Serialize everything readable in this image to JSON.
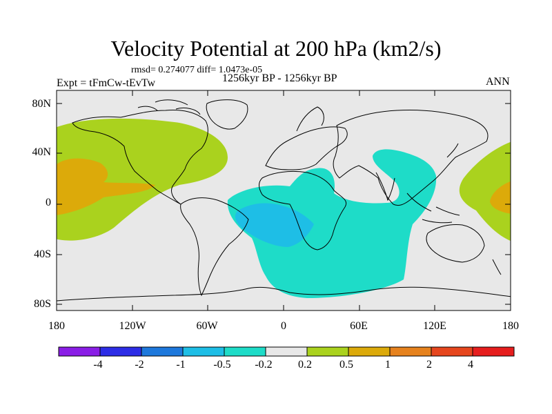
{
  "title": "Velocity Potential at 200 hPa (km2/s)",
  "stats": "rmsd= 0.274077 diff= 1.0473e-05",
  "experiment": "Expt = tFmCw-tEvTw",
  "period": "1256kyr BP - 1256kyr BP",
  "season": "ANN",
  "map": {
    "lat_labels": [
      "80N",
      "40N",
      "0",
      "40S",
      "80S"
    ],
    "lon_labels": [
      "180",
      "120W",
      "60W",
      "0",
      "60E",
      "120E",
      "180"
    ],
    "background_color": "#e8e8e8"
  },
  "colorbar": {
    "labels": [
      "-4",
      "-2",
      "-1",
      "-0.5",
      "-0.2",
      "0.2",
      "0.5",
      "1",
      "2",
      "4"
    ],
    "colors": [
      "#8a1ee6",
      "#2d2de6",
      "#1e78dc",
      "#1ebee6",
      "#1edcc8",
      "#e8e8e8",
      "#aad21e",
      "#dcaa0a",
      "#e6821e",
      "#e6461e",
      "#e61e1e"
    ]
  }
}
